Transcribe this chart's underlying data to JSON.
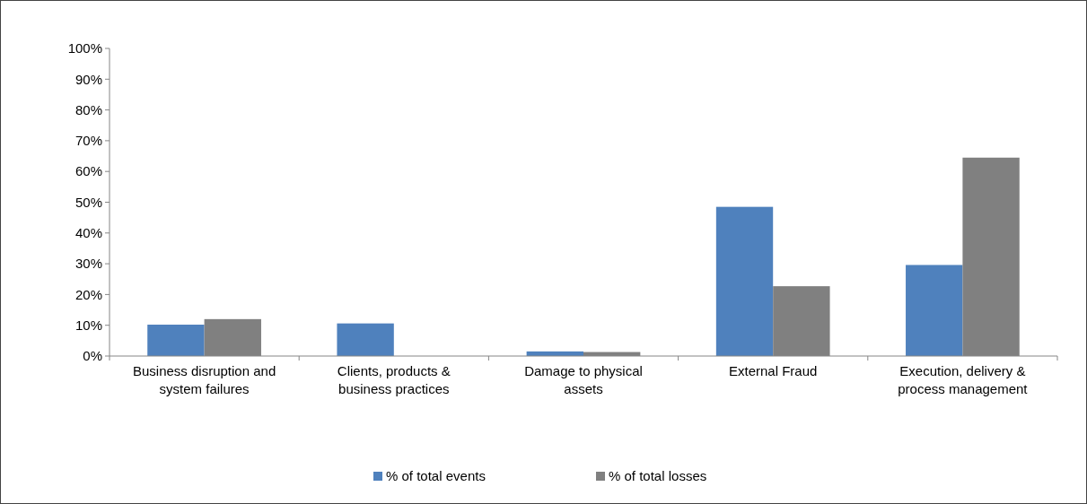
{
  "chart_data": {
    "type": "bar",
    "categories": [
      "Business disruption and system failures",
      "Clients, products & business practices",
      "Damage to physical assets",
      "External Fraud",
      "Execution, delivery & process management"
    ],
    "series": [
      {
        "name": "% of total events",
        "color": "#4f81bd",
        "values": [
          10.2,
          10.6,
          1.5,
          48.5,
          29.6
        ]
      },
      {
        "name": "% of total losses",
        "color": "#808080",
        "values": [
          12.0,
          0,
          1.3,
          22.7,
          64.5
        ]
      }
    ],
    "ylim": [
      0,
      100
    ],
    "yticks": [
      {
        "value": 0,
        "label": "0%"
      },
      {
        "value": 10,
        "label": "10%"
      },
      {
        "value": 20,
        "label": "20%"
      },
      {
        "value": 30,
        "label": "30%"
      },
      {
        "value": 40,
        "label": "40%"
      },
      {
        "value": 50,
        "label": "50%"
      },
      {
        "value": 60,
        "label": "60%"
      },
      {
        "value": 70,
        "label": "70%"
      },
      {
        "value": 80,
        "label": "80%"
      },
      {
        "value": 90,
        "label": "90%"
      },
      {
        "value": 100,
        "label": "100%"
      }
    ],
    "grid": false,
    "legend": "bottom"
  }
}
